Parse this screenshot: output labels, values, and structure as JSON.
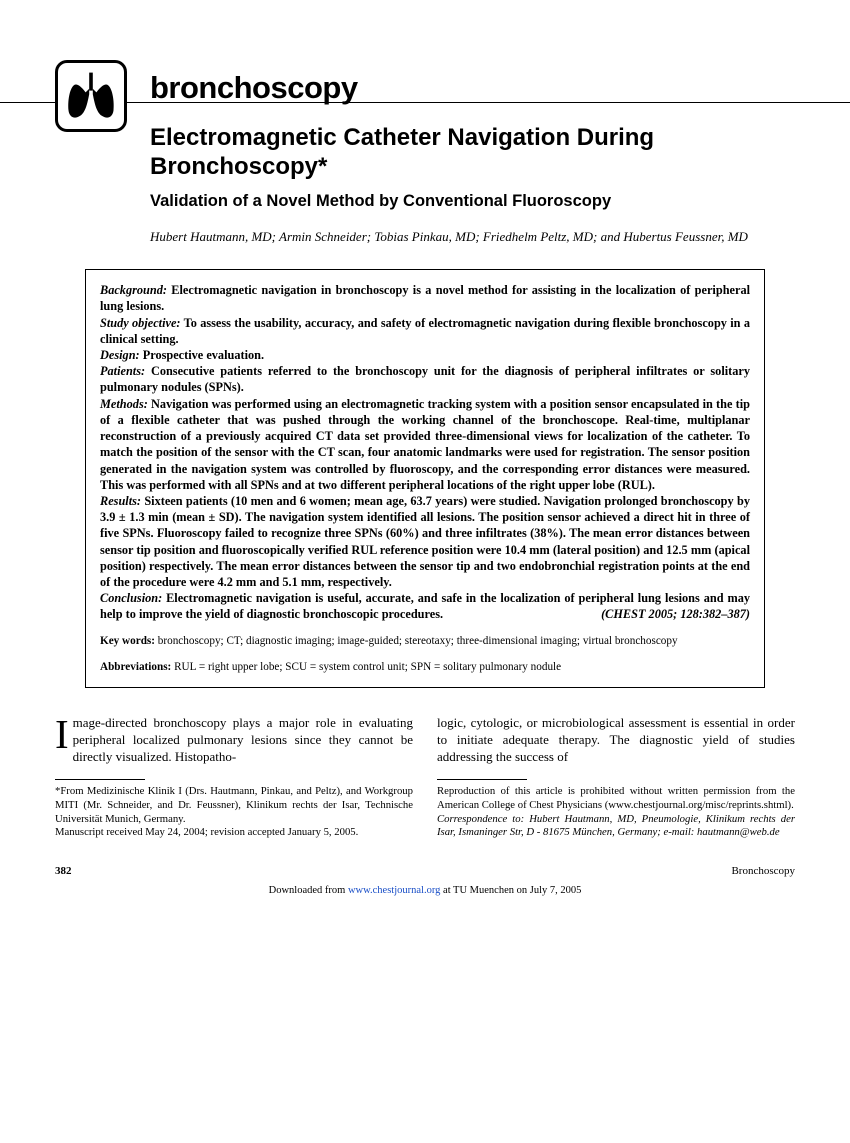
{
  "section_label": "bronchoscopy",
  "title": "Electromagnetic Catheter Navigation During Bronchoscopy*",
  "subtitle": "Validation of a Novel Method by Conventional Fluoroscopy",
  "authors": "Hubert Hautmann, MD; Armin Schneider; Tobias Pinkau, MD; Friedhelm Peltz, MD; and Hubertus Feussner, MD",
  "abstract": {
    "background_label": "Background:",
    "background": "Electromagnetic navigation in bronchoscopy is a novel method for assisting in the localization of peripheral lung lesions.",
    "objective_label": "Study objective:",
    "objective": "To assess the usability, accuracy, and safety of electromagnetic navigation during flexible bronchoscopy in a clinical setting.",
    "design_label": "Design:",
    "design": "Prospective evaluation.",
    "patients_label": "Patients:",
    "patients": "Consecutive patients referred to the bronchoscopy unit for the diagnosis of peripheral infiltrates or solitary pulmonary nodules (SPNs).",
    "methods_label": "Methods:",
    "methods": "Navigation was performed using an electromagnetic tracking system with a position sensor encapsulated in the tip of a flexible catheter that was pushed through the working channel of the bronchoscope. Real-time, multiplanar reconstruction of a previously acquired CT data set provided three-dimensional views for localization of the catheter. To match the position of the sensor with the CT scan, four anatomic landmarks were used for registration. The sensor position generated in the navigation system was controlled by fluoroscopy, and the corresponding error distances were measured. This was performed with all SPNs and at two different peripheral locations of the right upper lobe (RUL).",
    "results_label": "Results:",
    "results": "Sixteen patients (10 men and 6 women; mean age, 63.7 years) were studied. Navigation prolonged bronchoscopy by 3.9 ± 1.3 min (mean ± SD). The navigation system identified all lesions. The position sensor achieved a direct hit in three of five SPNs. Fluoroscopy failed to recognize three SPNs (60%) and three infiltrates (38%). The mean error distances between sensor tip position and fluoroscopically verified RUL reference position were 10.4 mm (lateral position) and 12.5 mm (apical position) respectively. The mean error distances between the sensor tip and two endobronchial registration points at the end of the procedure were 4.2 mm and 5.1 mm, respectively.",
    "conclusion_label": "Conclusion:",
    "conclusion": "Electromagnetic navigation is useful, accurate, and safe in the localization of peripheral lung lesions and may help to improve the yield of diagnostic bronchoscopic procedures.",
    "citation": "(CHEST 2005; 128:382–387)",
    "keywords_label": "Key words:",
    "keywords": "bronchoscopy; CT; diagnostic imaging; image-guided; stereotaxy; three-dimensional imaging; virtual bronchoscopy",
    "abbrev_label": "Abbreviations:",
    "abbrev": "RUL = right upper lobe; SCU = system control unit; SPN = solitary pulmonary nodule"
  },
  "body": {
    "dropcap": "I",
    "col1_p1": "mage-directed bronchoscopy plays a major role in evaluating peripheral localized pulmonary lesions since they cannot be directly visualized. Histopatho-",
    "col2_p1": "logic, cytologic, or microbiological assessment is essential in order to initiate adequate therapy. The diagnostic yield of studies addressing the success of"
  },
  "footnotes": {
    "left": "*From Medizinische Klinik I (Drs. Hautmann, Pinkau, and Peltz), and Workgroup MITI (Mr. Schneider, and Dr. Feussner), Klinikum rechts der Isar, Technische Universität Munich, Germany.\nManuscript received May 24, 2004; revision accepted January 5, 2005.",
    "right_p1": "Reproduction of this article is prohibited without written permission from the American College of Chest Physicians (www.chestjournal.org/misc/reprints.shtml).",
    "right_p2_label": "Correspondence to: ",
    "right_p2": "Hubert Hautmann, MD, Pneumologie, Klinikum rechts der Isar, Ismaninger Str, D - 81675 München, Germany; e-mail: hautmann@web.de"
  },
  "footer": {
    "page_number": "382",
    "right": "Bronchoscopy",
    "download_prefix": "Downloaded from ",
    "download_link": "www.chestjournal.org",
    "download_suffix": " at TU Muenchen on July 7, 2005"
  },
  "colors": {
    "text": "#000000",
    "background": "#ffffff",
    "link": "#1a4fc7"
  }
}
